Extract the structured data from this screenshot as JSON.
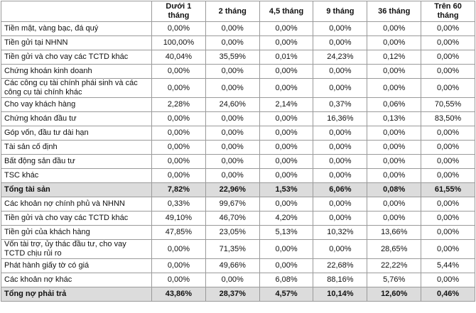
{
  "table": {
    "header": [
      "Dưới 1 tháng",
      "2 tháng",
      "4,5 tháng",
      "9 tháng",
      "36 tháng",
      "Trên 60 tháng"
    ],
    "rows": [
      {
        "label": "Tiền mặt, vàng bạc, đá quý",
        "values": [
          "0,00%",
          "0,00%",
          "0,00%",
          "0,00%",
          "0,00%",
          "0,00%"
        ]
      },
      {
        "label": "Tiền gửi tại NHNN",
        "values": [
          "100,00%",
          "0,00%",
          "0,00%",
          "0,00%",
          "0,00%",
          "0,00%"
        ]
      },
      {
        "label": "Tiền gửi và cho vay các TCTD khác",
        "values": [
          "40,04%",
          "35,59%",
          "0,01%",
          "24,23%",
          "0,12%",
          "0,00%"
        ]
      },
      {
        "label": "Chứng khoán kinh doanh",
        "values": [
          "0,00%",
          "0,00%",
          "0,00%",
          "0,00%",
          "0,00%",
          "0,00%"
        ]
      },
      {
        "label": "Các công cụ tài chính phái sinh và các công cụ tài chính khác",
        "values": [
          "0,00%",
          "0,00%",
          "0,00%",
          "0,00%",
          "0,00%",
          "0,00%"
        ]
      },
      {
        "label": "Cho vay khách hàng",
        "values": [
          "2,28%",
          "24,60%",
          "2,14%",
          "0,37%",
          "0,06%",
          "70,55%"
        ]
      },
      {
        "label": "Chứng khoán đầu tư",
        "values": [
          "0,00%",
          "0,00%",
          "0,00%",
          "16,36%",
          "0,13%",
          "83,50%"
        ]
      },
      {
        "label": "Góp vốn, đầu tư dài hạn",
        "values": [
          "0,00%",
          "0,00%",
          "0,00%",
          "0,00%",
          "0,00%",
          "0,00%"
        ]
      },
      {
        "label": "Tài sản cố định",
        "values": [
          "0,00%",
          "0,00%",
          "0,00%",
          "0,00%",
          "0,00%",
          "0,00%"
        ]
      },
      {
        "label": "Bất động sản đầu tư",
        "values": [
          "0,00%",
          "0,00%",
          "0,00%",
          "0,00%",
          "0,00%",
          "0,00%"
        ]
      },
      {
        "label": "TSC khác",
        "values": [
          "0,00%",
          "0,00%",
          "0,00%",
          "0,00%",
          "0,00%",
          "0,00%"
        ]
      },
      {
        "label": "Tổng tài sản",
        "values": [
          "7,82%",
          "22,96%",
          "1,53%",
          "6,06%",
          "0,08%",
          "61,55%"
        ],
        "highlight": true
      },
      {
        "label": "Các khoản nợ chính phủ và NHNN",
        "values": [
          "0,33%",
          "99,67%",
          "0,00%",
          "0,00%",
          "0,00%",
          "0,00%"
        ]
      },
      {
        "label": "Tiền gửi và cho vay các TCTD khác",
        "values": [
          "49,10%",
          "46,70%",
          "4,20%",
          "0,00%",
          "0,00%",
          "0,00%"
        ]
      },
      {
        "label": "Tiền gửi của khách hàng",
        "values": [
          "47,85%",
          "23,05%",
          "5,13%",
          "10,32%",
          "13,66%",
          "0,00%"
        ]
      },
      {
        "label": "Vốn tài trợ, ủy thác đầu tư, cho vay TCTD chịu rủi ro",
        "values": [
          "0,00%",
          "71,35%",
          "0,00%",
          "0,00%",
          "28,65%",
          "0,00%"
        ]
      },
      {
        "label": "Phát hành giấy tờ có giá",
        "values": [
          "0,00%",
          "49,66%",
          "0,00%",
          "22,68%",
          "22,22%",
          "5,44%"
        ]
      },
      {
        "label": "Các khoản nợ khác",
        "values": [
          "0,00%",
          "0,00%",
          "6,08%",
          "88,16%",
          "5,76%",
          "0,00%"
        ]
      },
      {
        "label": "Tổng nợ phải trả",
        "values": [
          "43,86%",
          "28,37%",
          "4,57%",
          "10,14%",
          "12,60%",
          "0,46%"
        ],
        "highlight": true
      }
    ]
  }
}
